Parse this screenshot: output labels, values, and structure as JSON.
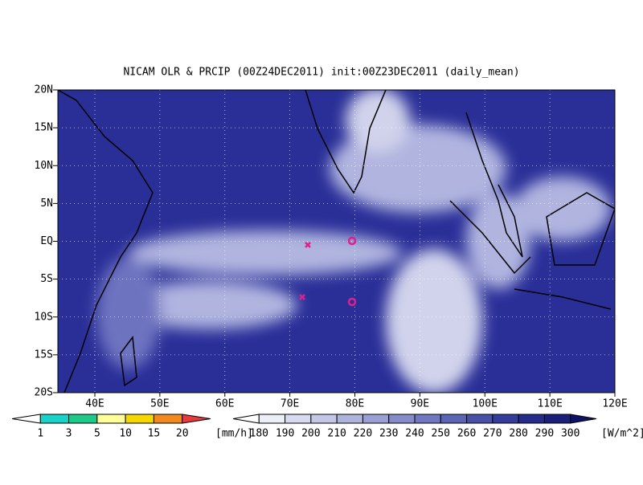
{
  "title": "NICAM OLR & PRCIP (00Z24DEC2011) init:00Z23DEC2011 (daily_mean)",
  "map": {
    "lat_labels": [
      "20N",
      "15N",
      "10N",
      "5N",
      "EQ",
      "5S",
      "10S",
      "15S",
      "20S"
    ],
    "lon_labels": [
      "40E",
      "50E",
      "60E",
      "70E",
      "80E",
      "90E",
      "100E",
      "110E",
      "120E"
    ]
  },
  "legends": [
    {
      "ticks": [
        "1",
        "3",
        "5",
        "10",
        "15",
        "20"
      ],
      "unit": "[mm/h]",
      "colors": [
        "#ffffff",
        "#19d3c9",
        "#1ec98a",
        "#ffff9a",
        "#f5d800",
        "#f08a1e",
        "#e8393c"
      ]
    },
    {
      "ticks": [
        "180",
        "190",
        "200",
        "210",
        "220",
        "230",
        "240",
        "250",
        "260",
        "270",
        "280",
        "290",
        "300"
      ],
      "unit": "[W/m^2]",
      "colors": [
        "#ffffff",
        "#eceef8",
        "#d8dbef",
        "#c4c8e6",
        "#afb4dd",
        "#9aa0d3",
        "#858cc9",
        "#7078bf",
        "#5c64b4",
        "#4850a8",
        "#353d9c",
        "#252c8c",
        "#1a1f7a",
        "#0f1266"
      ]
    }
  ]
}
